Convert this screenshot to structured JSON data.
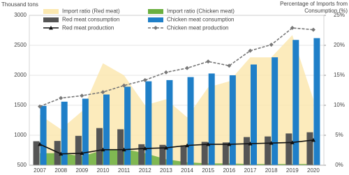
{
  "chart_data": {
    "type": "combo",
    "y_label": "Thousand tons",
    "y2_label": "Percentage of Imports from Consumption (%)",
    "categories": [
      "2007",
      "2008",
      "2009",
      "2010",
      "2011",
      "2012",
      "2013",
      "2014",
      "2015",
      "2016",
      "2017",
      "2018",
      "2019",
      "2020"
    ],
    "ylim": [
      500,
      3000
    ],
    "yticks": [
      500,
      1000,
      1500,
      2000,
      2500,
      3000
    ],
    "y2lim": [
      0,
      25
    ],
    "y2ticks": [
      {
        "value": 0,
        "label": "0%"
      },
      {
        "value": 5,
        "label": "5%"
      },
      {
        "value": 10,
        "label": "10%"
      },
      {
        "value": 15,
        "label": "15%"
      },
      {
        "value": 20,
        "label": "20%"
      },
      {
        "value": 25,
        "label": "25%"
      }
    ],
    "grid": true,
    "series": [
      {
        "name": "Import ratio (Red meat)",
        "kind": "area",
        "axis": "y2",
        "color": "#fbe8b0",
        "values": [
          8.4,
          6,
          9,
          17,
          15,
          10,
          11,
          8,
          13,
          14,
          18,
          18,
          21.7,
          11
        ]
      },
      {
        "name": "Import ratio (Chicken meat)",
        "kind": "area",
        "axis": "y2",
        "color": "#6aaf3f",
        "values": [
          2,
          2,
          1.5,
          2.5,
          2.7,
          2,
          1,
          0.5,
          0.3,
          0.3,
          0.2,
          0.2,
          0.2,
          0.2
        ]
      },
      {
        "name": "Red meat consumption",
        "kind": "bar",
        "color": "#555555",
        "values": [
          900,
          905,
          990,
          1120,
          1100,
          850,
          840,
          830,
          890,
          880,
          970,
          980,
          1030,
          1050
        ]
      },
      {
        "name": "Chicken meat consumption",
        "kind": "bar",
        "color": "#1f7fc8",
        "values": [
          1490,
          1560,
          1610,
          1680,
          1810,
          1900,
          1920,
          1970,
          2030,
          2000,
          2180,
          2300,
          2590,
          2620
        ]
      },
      {
        "name": "Red meat production",
        "kind": "line",
        "color": "#111111",
        "marker": "triangle",
        "values": [
          850,
          690,
          700,
          760,
          760,
          780,
          790,
          830,
          850,
          850,
          860,
          870,
          880,
          920
        ]
      },
      {
        "name": "Chicken meat production",
        "kind": "line",
        "color": "#777777",
        "marker": "diamond",
        "dashed": true,
        "values": [
          1480,
          1620,
          1660,
          1720,
          1830,
          1920,
          2050,
          2120,
          2230,
          2160,
          2410,
          2510,
          2790,
          2760
        ]
      }
    ]
  }
}
